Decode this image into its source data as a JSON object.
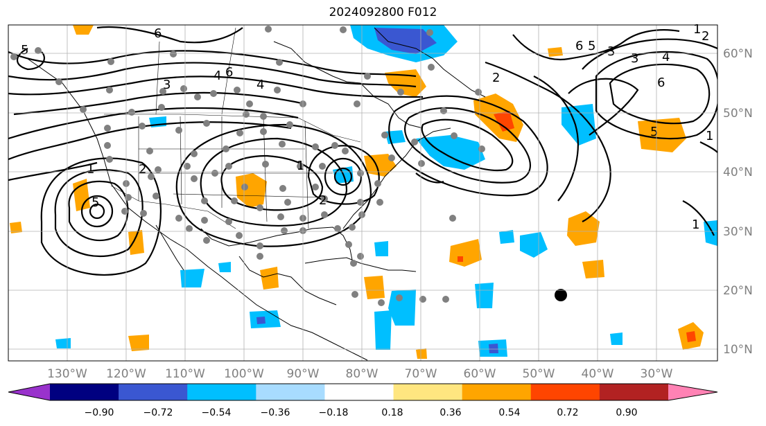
{
  "title": "2024092800 F012",
  "longitude_labels": [
    "130°W",
    "120°W",
    "110°W",
    "100°W",
    "90°W",
    "80°W",
    "70°W",
    "60°W",
    "50°W",
    "40°W",
    "30°W"
  ],
  "latitude_labels": [
    "60°N",
    "50°N",
    "40°N",
    "30°N",
    "20°N",
    "10°N"
  ],
  "colorbar": {
    "tick_labels": [
      "−0.90",
      "−0.72",
      "−0.54",
      "−0.36",
      "−0.18",
      "0.18",
      "0.36",
      "0.54",
      "0.72",
      "0.90"
    ],
    "colors": [
      "#9932cc",
      "#000080",
      "#3a57d1",
      "#00bfff",
      "#a8dcff",
      "#ffffff",
      "#ffe680",
      "#ffa500",
      "#ff4500",
      "#b22222",
      "#ff82b4"
    ]
  },
  "contour_labels": [
    "6",
    "5",
    "6",
    "3",
    "4",
    "1",
    "2",
    "1",
    "5",
    "4",
    "3",
    "2",
    "1",
    "2",
    "6",
    "5",
    "3",
    "4",
    "6",
    "5",
    "2",
    "1",
    "1"
  ],
  "storm_marker": "black-dot"
}
